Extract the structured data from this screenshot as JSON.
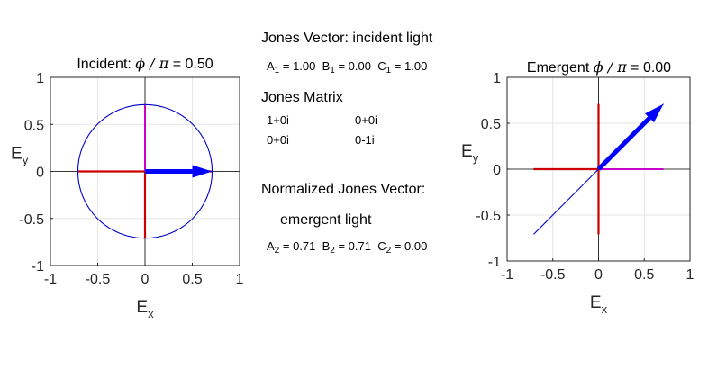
{
  "chart_data": [
    {
      "type": "line",
      "title": {
        "prefix": "Incident:",
        "symbol": "ϕ / π",
        "equals": "=",
        "value": "0.50"
      },
      "xlabel": {
        "base": "E",
        "sub": "x"
      },
      "ylabel": {
        "base": "E",
        "sub": "y"
      },
      "xlim": [
        -1,
        1
      ],
      "ylim": [
        -1,
        1
      ],
      "xticks": [
        "-1",
        "-0.5",
        "0",
        "0.5",
        "1"
      ],
      "yticks": [
        "-1",
        "-0.5",
        "0",
        "0.5",
        "1"
      ],
      "grid": true,
      "colors": {
        "ex_component": "#cc0000",
        "ey_component": "#cc00cc",
        "ellipse": "#0000cc",
        "field_vector": "#0000ff"
      },
      "series": [
        {
          "role": "ex_component",
          "x": [
            -0.71,
            0.71
          ],
          "y": [
            0,
            0
          ]
        },
        {
          "role": "ey_component",
          "x": [
            0,
            0
          ],
          "y": [
            0,
            0.71
          ]
        },
        {
          "role": "ey_component_lower",
          "x": [
            0,
            0
          ],
          "y": [
            -0.71,
            0
          ]
        },
        {
          "role": "polarization_ellipse",
          "shape": "circle",
          "radius": 0.71
        },
        {
          "role": "field_vector",
          "arrow": true,
          "x": [
            0,
            0.71
          ],
          "y": [
            0,
            0
          ]
        }
      ]
    },
    {
      "type": "line",
      "title": {
        "prefix": "Emergent",
        "symbol": "ϕ / π",
        "equals": "=",
        "value": "0.00"
      },
      "xlabel": {
        "base": "E",
        "sub": "x"
      },
      "ylabel": {
        "base": "E",
        "sub": "y"
      },
      "xlim": [
        -1,
        1
      ],
      "ylim": [
        -1,
        1
      ],
      "xticks": [
        "-1",
        "-0.5",
        "0",
        "0.5",
        "1"
      ],
      "yticks": [
        "-1",
        "-0.5",
        "0",
        "0.5",
        "1"
      ],
      "grid": true,
      "colors": {
        "ex_component": "#cc0000",
        "ey_component": "#cc00cc",
        "ellipse": "#0000cc",
        "field_vector": "#0000ff"
      },
      "series": [
        {
          "role": "ey_component",
          "x": [
            0,
            0.71
          ],
          "y": [
            0,
            0
          ]
        },
        {
          "role": "ex_component",
          "x": [
            -0.71,
            0.71
          ],
          "y": [
            0,
            0
          ],
          "segment": "left"
        },
        {
          "role": "ex_component_vertical",
          "x": [
            0,
            0
          ],
          "y": [
            -0.71,
            0.71
          ]
        },
        {
          "role": "polarization_line",
          "x": [
            -0.71,
            0.71
          ],
          "y": [
            -0.71,
            0.71
          ]
        },
        {
          "role": "field_vector",
          "arrow": true,
          "x": [
            0,
            0.71
          ],
          "y": [
            0,
            0.71
          ]
        }
      ]
    }
  ],
  "info": {
    "incident_heading": "Jones Vector: incident light",
    "incident": {
      "a_label": "A",
      "a_sub": "1",
      "a_val": "= 1.00",
      "b_label": "B",
      "b_sub": "1",
      "b_val": "= 0.00",
      "c_label": "C",
      "c_sub": "1",
      "c_val": "= 1.00"
    },
    "matrix_heading": "Jones Matrix",
    "matrix": [
      [
        "1+0i",
        "0+0i"
      ],
      [
        "0+0i",
        "0-1i"
      ]
    ],
    "normalized_heading": "Normalized Jones Vector:",
    "emergent_heading": "emergent light",
    "emergent": {
      "a_label": "A",
      "a_sub": "2",
      "a_val": "= 0.71",
      "b_label": "B",
      "b_sub": "2",
      "b_val": "= 0.71",
      "c_label": "C",
      "c_sub": "2",
      "c_val": "= 0.00"
    }
  }
}
